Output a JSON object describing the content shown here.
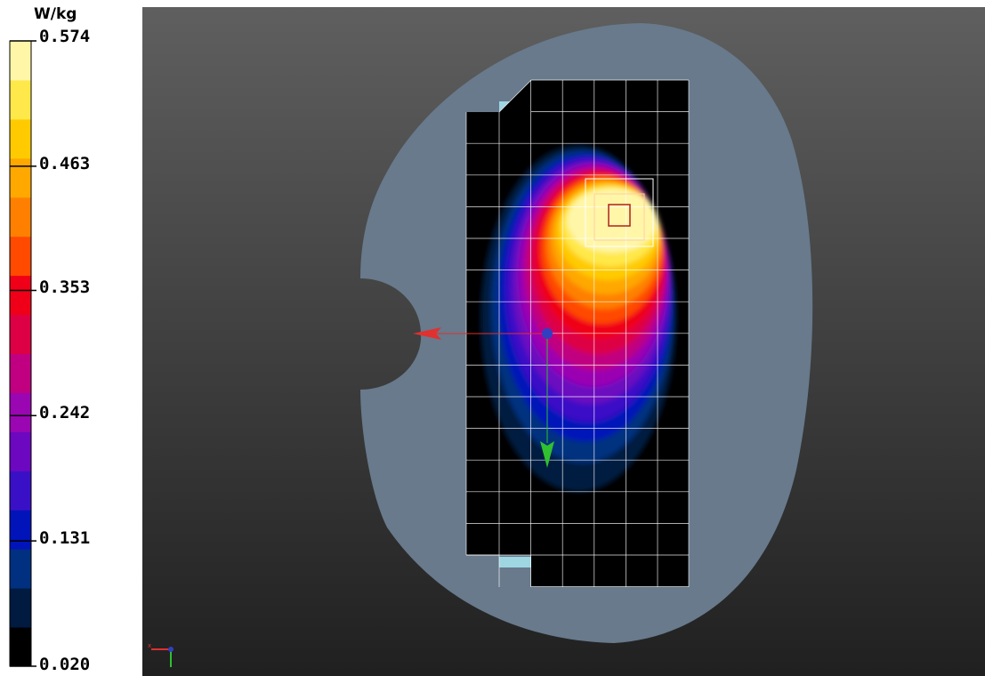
{
  "chart_data": {
    "type": "heatmap",
    "title": "",
    "unit": "W/kg",
    "scale_min": 0.02,
    "scale_max": 0.574,
    "ticks": [
      "0.574",
      "0.463",
      "0.353",
      "0.242",
      "0.131",
      "0.020"
    ],
    "tick_values": [
      0.574,
      0.463,
      0.353,
      0.242,
      0.131,
      0.02
    ],
    "colormap": [
      "#000000",
      "#001a40",
      "#00307f",
      "#0014b9",
      "#3a10c6",
      "#6c08c0",
      "#9a06b2",
      "#c00080",
      "#de0044",
      "#f00018",
      "#ff4a00",
      "#ff8000",
      "#ffa800",
      "#ffcb00",
      "#ffe84a",
      "#fff6a8"
    ],
    "grid": true,
    "legend_position": "left"
  },
  "colors": {
    "phantom": "#687a8c",
    "background_top": "#5f5f5f",
    "background_bottom": "#202020",
    "grid_line": "#ffffff",
    "axis_x": "#e03030",
    "axis_y": "#30c030"
  }
}
